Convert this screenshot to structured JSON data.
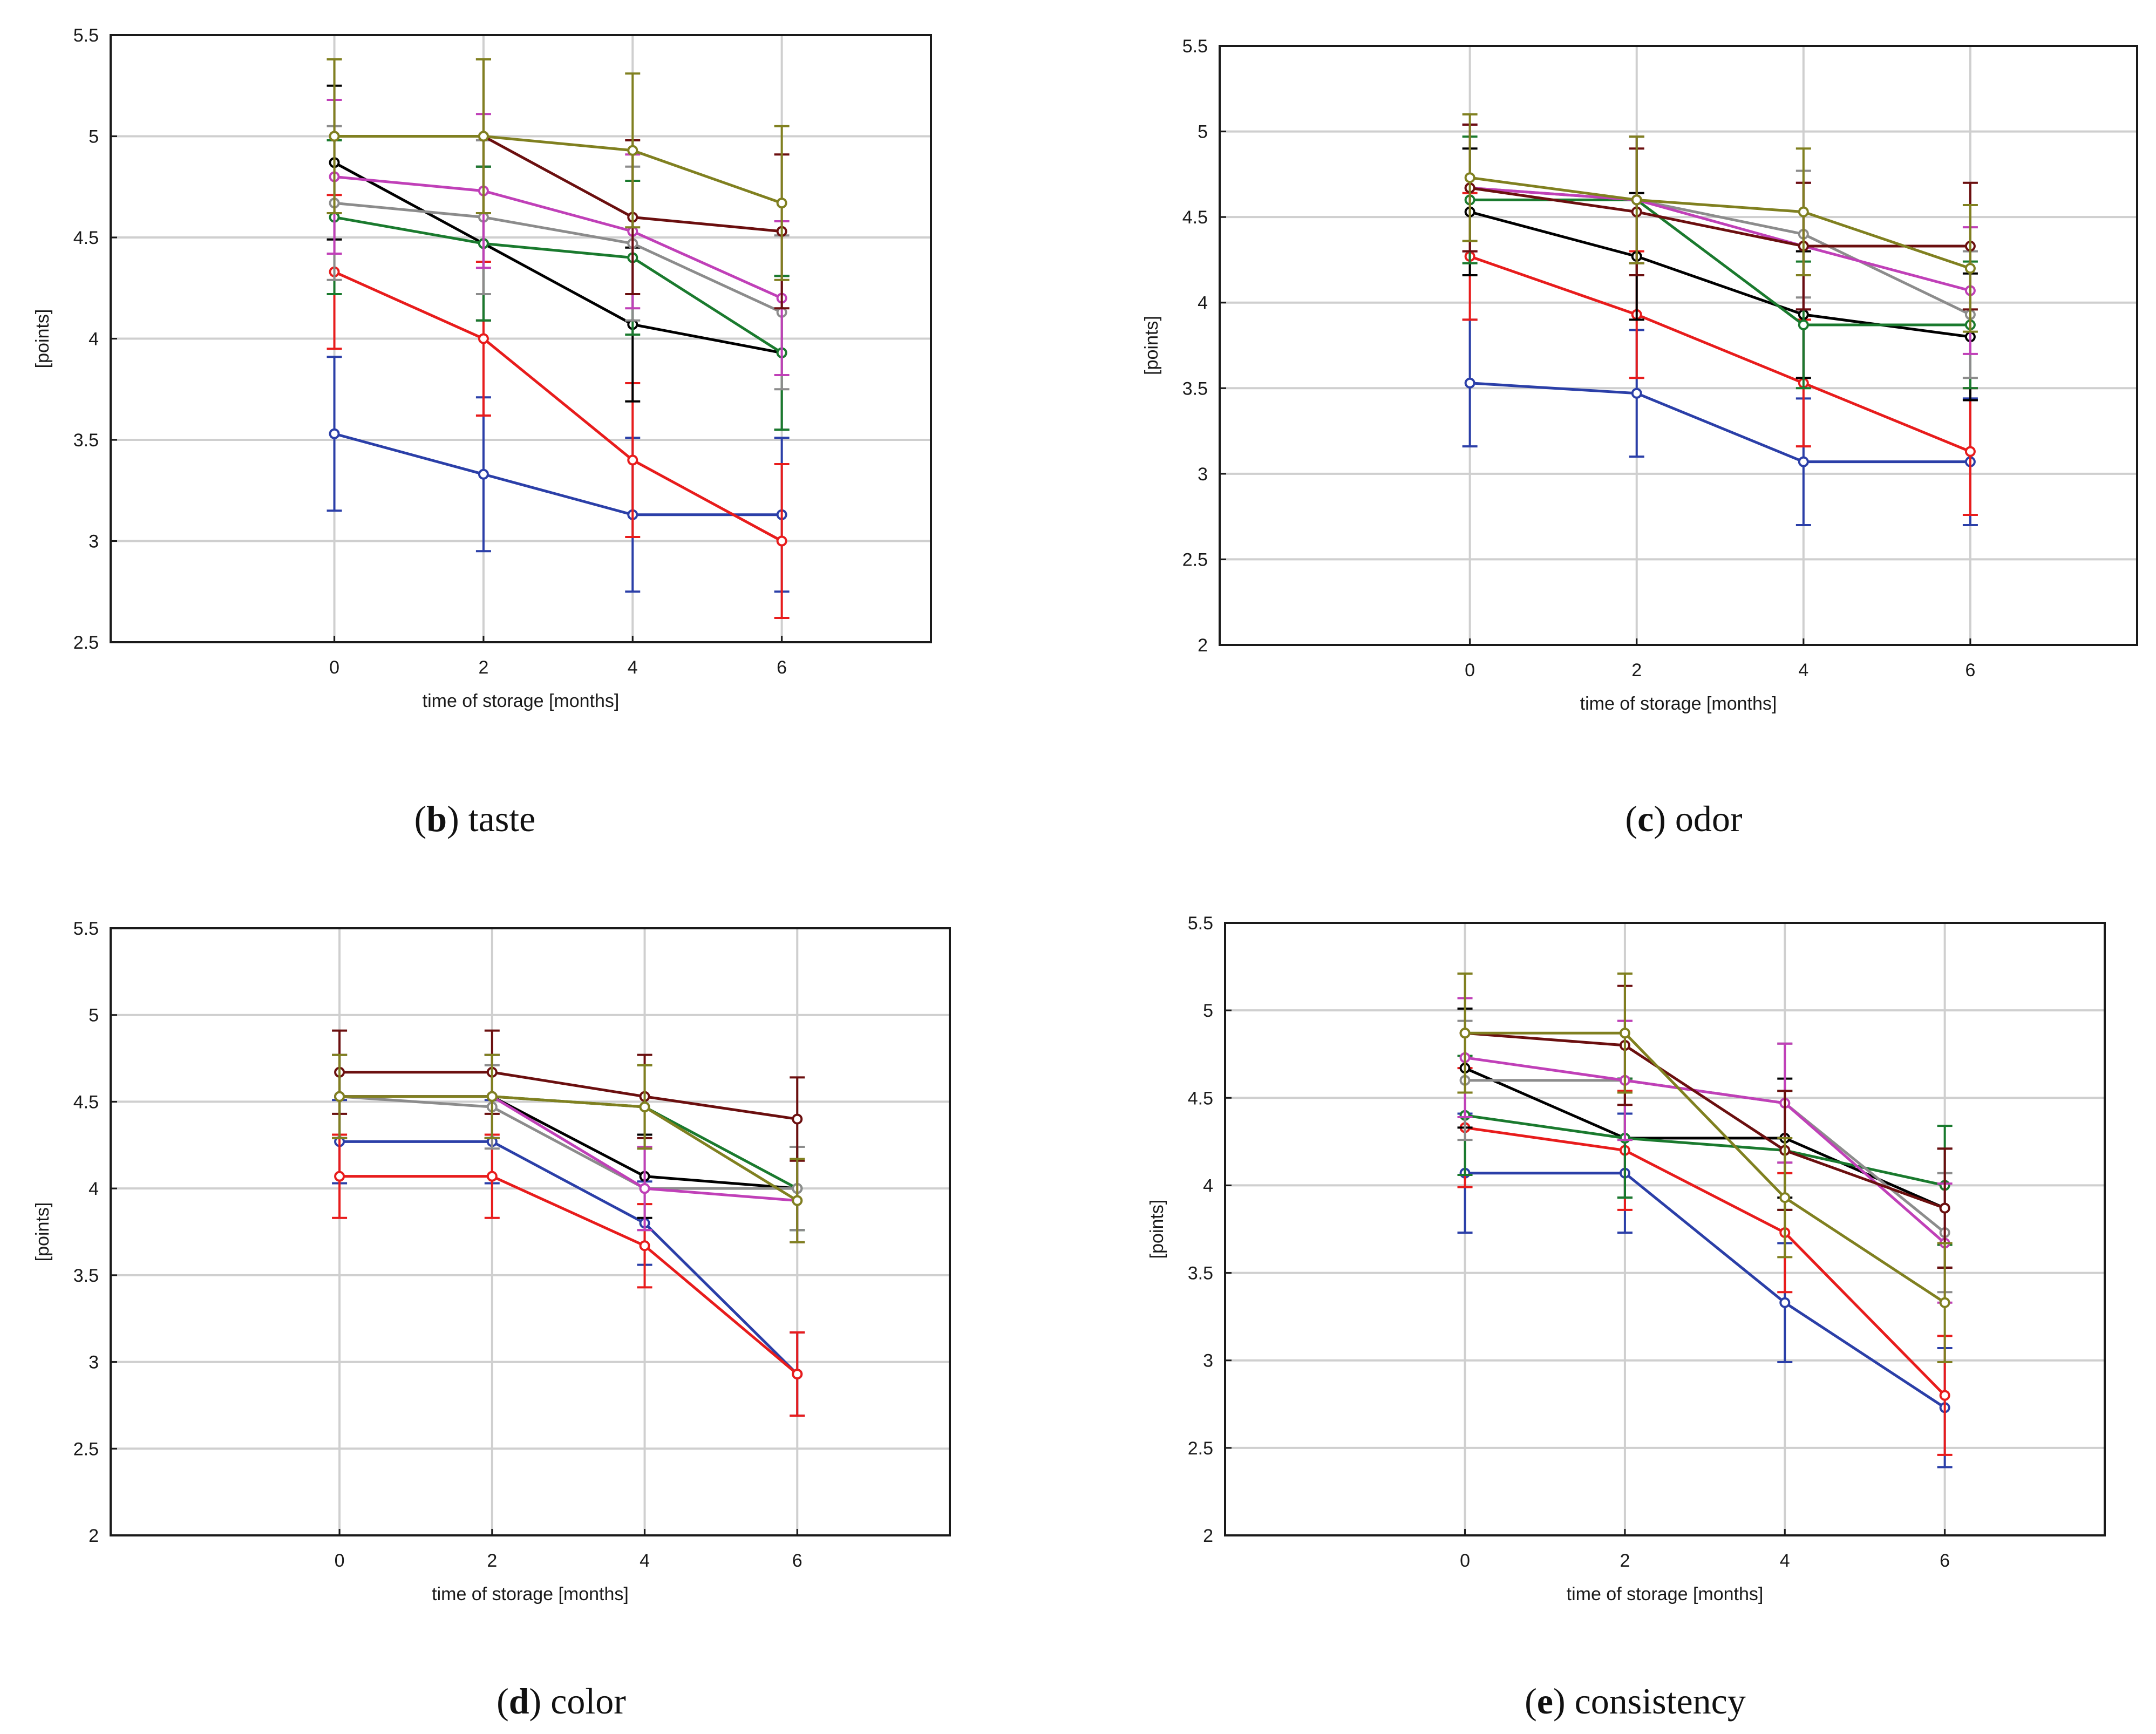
{
  "chart_data": [
    {
      "type": "line",
      "caption_letter": "b",
      "caption_text": "taste",
      "xlabel": "time of storage [months]",
      "ylabel": "[points]",
      "x": [
        0,
        2,
        4,
        6
      ],
      "xticks": [
        "0",
        "2",
        "4",
        "6"
      ],
      "xlim": [
        -3,
        8
      ],
      "ylim": [
        2.5,
        5.5
      ],
      "yticks": [
        "2.5",
        "3",
        "3.5",
        "4",
        "4.5",
        "5",
        "5.5"
      ],
      "grid": true,
      "series": [
        {
          "color": "#2b3fa8",
          "values": [
            3.53,
            3.33,
            3.13,
            3.13
          ],
          "errors": [
            0.38,
            0.38,
            0.38,
            0.38
          ]
        },
        {
          "color": "#e81c1c",
          "values": [
            4.33,
            4.0,
            3.4,
            3.0
          ],
          "errors": [
            0.38,
            0.38,
            0.38,
            0.38
          ]
        },
        {
          "color": "#000000",
          "values": [
            4.87,
            4.47,
            4.07,
            3.93
          ],
          "errors": [
            0.38,
            0.38,
            0.38,
            0.38
          ]
        },
        {
          "color": "#1a7a2e",
          "values": [
            4.6,
            4.47,
            4.4,
            3.93
          ],
          "errors": [
            0.38,
            0.38,
            0.38,
            0.38
          ]
        },
        {
          "color": "#8c8c8c",
          "values": [
            4.67,
            4.6,
            4.47,
            4.13
          ],
          "errors": [
            0.38,
            0.38,
            0.38,
            0.38
          ]
        },
        {
          "color": "#c040b8",
          "values": [
            4.8,
            4.73,
            4.53,
            4.2
          ],
          "errors": [
            0.38,
            0.38,
            0.38,
            0.38
          ]
        },
        {
          "color": "#6b0f0f",
          "values": [
            5.0,
            5.0,
            4.6,
            4.53
          ],
          "errors": [
            0.38,
            0.38,
            0.38,
            0.38
          ]
        },
        {
          "color": "#808020",
          "values": [
            5.0,
            5.0,
            4.93,
            4.67
          ],
          "errors": [
            0.38,
            0.38,
            0.38,
            0.38
          ]
        }
      ]
    },
    {
      "type": "line",
      "caption_letter": "c",
      "caption_text": "odor",
      "xlabel": "time of storage [months]",
      "ylabel": "[points]",
      "x": [
        0,
        2,
        4,
        6
      ],
      "xticks": [
        "0",
        "2",
        "4",
        "6"
      ],
      "xlim": [
        -3,
        8
      ],
      "ylim": [
        2,
        5.5
      ],
      "yticks": [
        "2",
        "2.5",
        "3",
        "3.5",
        "4",
        "4.5",
        "5",
        "5.5"
      ],
      "grid": true,
      "series": [
        {
          "color": "#2b3fa8",
          "values": [
            3.53,
            3.47,
            3.07,
            3.07
          ],
          "errors": [
            0.37,
            0.37,
            0.37,
            0.37
          ]
        },
        {
          "color": "#e81c1c",
          "values": [
            4.27,
            3.93,
            3.53,
            3.13
          ],
          "errors": [
            0.37,
            0.37,
            0.37,
            0.37
          ]
        },
        {
          "color": "#000000",
          "values": [
            4.53,
            4.27,
            3.93,
            3.8
          ],
          "errors": [
            0.37,
            0.37,
            0.37,
            0.37
          ]
        },
        {
          "color": "#1a7a2e",
          "values": [
            4.6,
            4.6,
            3.87,
            3.87
          ],
          "errors": [
            0.37,
            0.37,
            0.37,
            0.37
          ]
        },
        {
          "color": "#8c8c8c",
          "values": [
            4.67,
            4.6,
            4.4,
            3.93
          ],
          "errors": [
            0.37,
            0.37,
            0.37,
            0.37
          ]
        },
        {
          "color": "#c040b8",
          "values": [
            4.67,
            4.6,
            4.33,
            4.07
          ],
          "errors": [
            0.37,
            0.37,
            0.37,
            0.37
          ]
        },
        {
          "color": "#6b0f0f",
          "values": [
            4.67,
            4.53,
            4.33,
            4.33
          ],
          "errors": [
            0.37,
            0.37,
            0.37,
            0.37
          ]
        },
        {
          "color": "#808020",
          "values": [
            4.73,
            4.6,
            4.53,
            4.2
          ],
          "errors": [
            0.37,
            0.37,
            0.37,
            0.37
          ]
        }
      ]
    },
    {
      "type": "line",
      "caption_letter": "d",
      "caption_text": "color",
      "xlabel": "time of storage [months]",
      "ylabel": "[points]",
      "x": [
        0,
        2,
        4,
        6
      ],
      "xticks": [
        "0",
        "2",
        "4",
        "6"
      ],
      "xlim": [
        -3,
        8
      ],
      "ylim": [
        2,
        5.5
      ],
      "yticks": [
        "2",
        "2.5",
        "3",
        "3.5",
        "4",
        "4.5",
        "5",
        "5.5"
      ],
      "grid": true,
      "series": [
        {
          "color": "#2b3fa8",
          "values": [
            4.27,
            4.27,
            3.8,
            2.93
          ],
          "errors": [
            0.24,
            0.24,
            0.24,
            0.24
          ]
        },
        {
          "color": "#e81c1c",
          "values": [
            4.07,
            4.07,
            3.67,
            2.93
          ],
          "errors": [
            0.24,
            0.24,
            0.24,
            0.24
          ]
        },
        {
          "color": "#000000",
          "values": [
            4.53,
            4.53,
            4.07,
            4.0
          ],
          "errors": [
            0.24,
            0.24,
            0.24,
            0.24
          ]
        },
        {
          "color": "#1a7a2e",
          "values": [
            4.53,
            4.53,
            4.47,
            4.0
          ],
          "errors": [
            0.24,
            0.24,
            0.24,
            0.24
          ]
        },
        {
          "color": "#8c8c8c",
          "values": [
            4.53,
            4.47,
            4.0,
            4.0
          ],
          "errors": [
            0.24,
            0.24,
            0.24,
            0.24
          ]
        },
        {
          "color": "#c040b8",
          "values": [
            4.53,
            4.53,
            4.0,
            3.93
          ],
          "errors": [
            0.24,
            0.24,
            0.24,
            0.24
          ]
        },
        {
          "color": "#6b0f0f",
          "values": [
            4.67,
            4.67,
            4.53,
            4.4
          ],
          "errors": [
            0.24,
            0.24,
            0.24,
            0.24
          ]
        },
        {
          "color": "#808020",
          "values": [
            4.53,
            4.53,
            4.47,
            3.93
          ],
          "errors": [
            0.24,
            0.24,
            0.24,
            0.24
          ]
        }
      ]
    },
    {
      "type": "line",
      "caption_letter": "e",
      "caption_text": "consistency",
      "xlabel": "time of storage [months]",
      "ylabel": "[points]",
      "x": [
        0,
        2,
        4,
        6
      ],
      "xticks": [
        "0",
        "2",
        "4",
        "6"
      ],
      "xlim": [
        -3,
        8
      ],
      "ylim": [
        2,
        5.5
      ],
      "yticks": [
        "2",
        "2.5",
        "3",
        "3.5",
        "4",
        "4.5",
        "5",
        "5.5"
      ],
      "grid": true,
      "series": [
        {
          "color": "#2b3fa8",
          "values": [
            4.07,
            4.07,
            3.33,
            2.73
          ],
          "errors": [
            0.34,
            0.34,
            0.34,
            0.34
          ]
        },
        {
          "color": "#e81c1c",
          "values": [
            4.33,
            4.2,
            3.73,
            2.8
          ],
          "errors": [
            0.34,
            0.34,
            0.34,
            0.34
          ]
        },
        {
          "color": "#000000",
          "values": [
            4.67,
            4.27,
            4.27,
            3.87
          ],
          "errors": [
            0.34,
            0.34,
            0.34,
            0.34
          ]
        },
        {
          "color": "#1a7a2e",
          "values": [
            4.4,
            4.27,
            4.2,
            4.0
          ],
          "errors": [
            0.34,
            0.34,
            0.34,
            0.34
          ]
        },
        {
          "color": "#8c8c8c",
          "values": [
            4.6,
            4.6,
            4.47,
            3.73
          ],
          "errors": [
            0.34,
            0.34,
            0.34,
            0.34
          ]
        },
        {
          "color": "#c040b8",
          "values": [
            4.73,
            4.6,
            4.47,
            3.67
          ],
          "errors": [
            0.34,
            0.34,
            0.34,
            0.34
          ]
        },
        {
          "color": "#6b0f0f",
          "values": [
            4.87,
            4.8,
            4.2,
            3.87
          ],
          "errors": [
            0.34,
            0.34,
            0.34,
            0.34
          ]
        },
        {
          "color": "#808020",
          "values": [
            4.87,
            4.87,
            3.93,
            3.33
          ],
          "errors": [
            0.34,
            0.34,
            0.34,
            0.34
          ]
        }
      ]
    }
  ]
}
